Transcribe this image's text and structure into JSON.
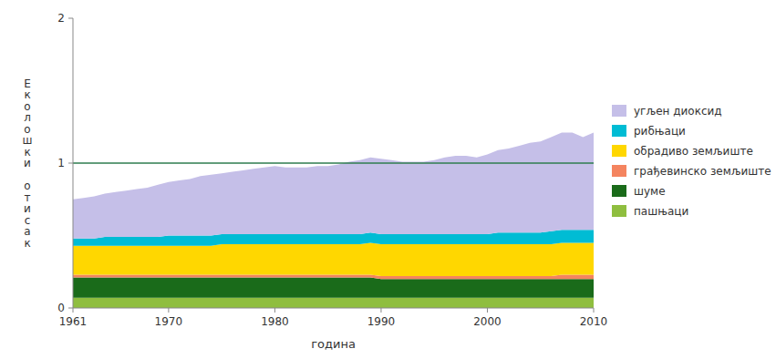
{
  "chart_data": {
    "type": "area",
    "stacked": true,
    "xlabel": "година",
    "ylabel": "Еколошки отисак",
    "x": [
      1961,
      1962,
      1963,
      1964,
      1965,
      1966,
      1967,
      1968,
      1969,
      1970,
      1971,
      1972,
      1973,
      1974,
      1975,
      1976,
      1977,
      1978,
      1979,
      1980,
      1981,
      1982,
      1983,
      1984,
      1985,
      1986,
      1987,
      1988,
      1989,
      1990,
      1991,
      1992,
      1993,
      1994,
      1995,
      1996,
      1997,
      1998,
      1999,
      2000,
      2001,
      2002,
      2003,
      2004,
      2005,
      2006,
      2007,
      2008,
      2009,
      2010
    ],
    "series": [
      {
        "name": "пашњаци",
        "color": "#8fbe3f",
        "values": [
          0.07,
          0.07,
          0.07,
          0.07,
          0.07,
          0.07,
          0.07,
          0.07,
          0.07,
          0.07,
          0.07,
          0.07,
          0.07,
          0.07,
          0.07,
          0.07,
          0.07,
          0.07,
          0.07,
          0.07,
          0.07,
          0.07,
          0.07,
          0.07,
          0.07,
          0.07,
          0.07,
          0.07,
          0.07,
          0.07,
          0.07,
          0.07,
          0.07,
          0.07,
          0.07,
          0.07,
          0.07,
          0.07,
          0.07,
          0.07,
          0.07,
          0.07,
          0.07,
          0.07,
          0.07,
          0.07,
          0.07,
          0.07,
          0.07,
          0.07
        ]
      },
      {
        "name": "шуме",
        "color": "#1a6b1a",
        "values": [
          0.14,
          0.14,
          0.14,
          0.14,
          0.14,
          0.14,
          0.14,
          0.14,
          0.14,
          0.14,
          0.14,
          0.14,
          0.14,
          0.14,
          0.14,
          0.14,
          0.14,
          0.14,
          0.14,
          0.14,
          0.14,
          0.14,
          0.14,
          0.14,
          0.14,
          0.14,
          0.14,
          0.14,
          0.14,
          0.13,
          0.13,
          0.13,
          0.13,
          0.13,
          0.13,
          0.13,
          0.13,
          0.13,
          0.13,
          0.13,
          0.13,
          0.13,
          0.13,
          0.13,
          0.13,
          0.13,
          0.13,
          0.13,
          0.13,
          0.13
        ]
      },
      {
        "name": "грађевинско земљиште",
        "color": "#f4845f",
        "values": [
          0.02,
          0.02,
          0.02,
          0.02,
          0.02,
          0.02,
          0.02,
          0.02,
          0.02,
          0.02,
          0.02,
          0.02,
          0.02,
          0.02,
          0.02,
          0.02,
          0.02,
          0.02,
          0.02,
          0.02,
          0.02,
          0.02,
          0.02,
          0.02,
          0.02,
          0.02,
          0.02,
          0.02,
          0.02,
          0.02,
          0.02,
          0.02,
          0.02,
          0.02,
          0.02,
          0.02,
          0.02,
          0.02,
          0.02,
          0.02,
          0.02,
          0.02,
          0.02,
          0.02,
          0.02,
          0.02,
          0.03,
          0.03,
          0.03,
          0.03
        ]
      },
      {
        "name": "обрадиво земљиште",
        "color": "#ffd700",
        "values": [
          0.2,
          0.2,
          0.2,
          0.2,
          0.2,
          0.2,
          0.2,
          0.2,
          0.2,
          0.2,
          0.2,
          0.2,
          0.2,
          0.2,
          0.21,
          0.21,
          0.21,
          0.21,
          0.21,
          0.21,
          0.21,
          0.21,
          0.21,
          0.21,
          0.21,
          0.21,
          0.21,
          0.21,
          0.22,
          0.22,
          0.22,
          0.22,
          0.22,
          0.22,
          0.22,
          0.22,
          0.22,
          0.22,
          0.22,
          0.22,
          0.22,
          0.22,
          0.22,
          0.22,
          0.22,
          0.22,
          0.22,
          0.22,
          0.22,
          0.22
        ]
      },
      {
        "name": "рибњаци",
        "color": "#00bcd4",
        "values": [
          0.05,
          0.05,
          0.05,
          0.06,
          0.06,
          0.06,
          0.06,
          0.06,
          0.06,
          0.07,
          0.07,
          0.07,
          0.07,
          0.07,
          0.07,
          0.07,
          0.07,
          0.07,
          0.07,
          0.07,
          0.07,
          0.07,
          0.07,
          0.07,
          0.07,
          0.07,
          0.07,
          0.07,
          0.07,
          0.07,
          0.07,
          0.07,
          0.07,
          0.07,
          0.07,
          0.07,
          0.07,
          0.07,
          0.07,
          0.07,
          0.08,
          0.08,
          0.08,
          0.08,
          0.08,
          0.09,
          0.09,
          0.09,
          0.09,
          0.09
        ]
      },
      {
        "name": "угљен диоксид",
        "color": "#c5bfe8",
        "values": [
          0.27,
          0.28,
          0.29,
          0.3,
          0.31,
          0.32,
          0.33,
          0.34,
          0.36,
          0.37,
          0.38,
          0.39,
          0.41,
          0.42,
          0.42,
          0.43,
          0.44,
          0.45,
          0.46,
          0.47,
          0.46,
          0.46,
          0.46,
          0.47,
          0.47,
          0.48,
          0.5,
          0.51,
          0.52,
          0.52,
          0.51,
          0.5,
          0.5,
          0.5,
          0.51,
          0.53,
          0.54,
          0.54,
          0.53,
          0.55,
          0.57,
          0.58,
          0.6,
          0.62,
          0.63,
          0.65,
          0.67,
          0.67,
          0.64,
          0.67
        ]
      }
    ],
    "reference_line": {
      "value": 1.0,
      "color": "#2e7d4f"
    },
    "xlim": [
      1961,
      2010
    ],
    "xticks": [
      1961,
      1970,
      1980,
      1990,
      2000,
      2010
    ],
    "ylim": [
      0,
      2
    ],
    "yticks": [
      0,
      1,
      2
    ],
    "grid": false,
    "legend": "right"
  }
}
